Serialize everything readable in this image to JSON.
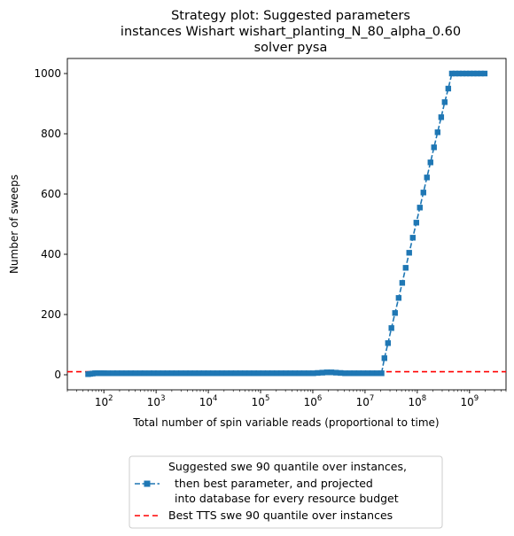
{
  "chart_data": {
    "type": "line",
    "title_lines": [
      "Strategy plot: Suggested parameters",
      "instances Wishart wishart_planting_N_80_alpha_0.60",
      "solver pysa"
    ],
    "xlabel": "Total number of spin variable reads (proportional to time)",
    "ylabel": "Number of sweeps",
    "xscale": "log",
    "xlim": [
      20,
      5000000000
    ],
    "ylim": [
      -50,
      1050
    ],
    "yticks": [
      0,
      200,
      400,
      600,
      800,
      1000
    ],
    "xtick_exponents": [
      "2",
      "3",
      "4",
      "5",
      "6",
      "7",
      "8",
      "9"
    ],
    "xtick_base": "10",
    "grid": false,
    "legend_position": "below",
    "series": [
      {
        "name_lines": [
          "Suggested swe 90 quantile over instances,",
          "then best parameter, and projected",
          "into database for every resource budget"
        ],
        "color": "#1f77b4",
        "marker": "square",
        "points": [
          [
            50,
            2
          ],
          [
            55,
            3
          ],
          [
            61,
            4
          ],
          [
            68,
            5
          ],
          [
            75,
            5
          ],
          [
            83,
            5
          ],
          [
            92,
            5
          ],
          [
            100,
            5
          ],
          [
            120,
            5
          ],
          [
            150,
            5
          ],
          [
            180,
            5
          ],
          [
            220,
            5
          ],
          [
            270,
            5
          ],
          [
            330,
            5
          ],
          [
            400,
            5
          ],
          [
            500,
            5
          ],
          [
            600,
            5
          ],
          [
            750,
            5
          ],
          [
            900,
            5
          ],
          [
            1100,
            5
          ],
          [
            1350,
            5
          ],
          [
            1650,
            5
          ],
          [
            2000,
            5
          ],
          [
            2450,
            5
          ],
          [
            3000,
            5
          ],
          [
            3700,
            5
          ],
          [
            4500,
            5
          ],
          [
            5500,
            5
          ],
          [
            6700,
            5
          ],
          [
            8200,
            5
          ],
          [
            10000,
            5
          ],
          [
            12200,
            5
          ],
          [
            15000,
            5
          ],
          [
            18300,
            5
          ],
          [
            22400,
            5
          ],
          [
            27400,
            5
          ],
          [
            33500,
            5
          ],
          [
            41000,
            5
          ],
          [
            50000,
            5
          ],
          [
            61000,
            5
          ],
          [
            75000,
            5
          ],
          [
            91500,
            5
          ],
          [
            112000,
            5
          ],
          [
            137000,
            5
          ],
          [
            167000,
            5
          ],
          [
            204000,
            5
          ],
          [
            250000,
            5
          ],
          [
            305000,
            5
          ],
          [
            373000,
            5
          ],
          [
            456000,
            5
          ],
          [
            557000,
            5
          ],
          [
            681000,
            5
          ],
          [
            832000,
            5
          ],
          [
            1020000,
            5
          ],
          [
            1240000,
            6
          ],
          [
            1520000,
            7
          ],
          [
            1860000,
            8
          ],
          [
            2270000,
            8
          ],
          [
            2780000,
            7
          ],
          [
            3400000,
            6
          ],
          [
            4150000,
            5
          ],
          [
            5080000,
            5
          ],
          [
            6200000,
            5
          ],
          [
            7580000,
            5
          ],
          [
            9270000,
            5
          ],
          [
            11300000,
            5
          ],
          [
            13800000,
            5
          ],
          [
            16900000,
            5
          ],
          [
            20700000,
            5
          ],
          [
            23500000,
            55
          ],
          [
            27500000,
            105
          ],
          [
            32000000,
            155
          ],
          [
            37500000,
            205
          ],
          [
            44000000,
            255
          ],
          [
            51500000,
            305
          ],
          [
            60000000,
            355
          ],
          [
            70000000,
            405
          ],
          [
            82000000,
            455
          ],
          [
            96000000,
            505
          ],
          [
            112000000,
            555
          ],
          [
            131000000,
            605
          ],
          [
            153000000,
            655
          ],
          [
            179000000,
            705
          ],
          [
            209000000,
            755
          ],
          [
            245000000,
            805
          ],
          [
            287000000,
            855
          ],
          [
            335000000,
            905
          ],
          [
            392000000,
            950
          ],
          [
            460000000,
            1000
          ],
          [
            540000000,
            1000
          ],
          [
            630000000,
            1000
          ],
          [
            740000000,
            1000
          ],
          [
            870000000,
            1000
          ],
          [
            1020000000,
            1000
          ],
          [
            1200000000,
            1000
          ],
          [
            1400000000,
            1000
          ],
          [
            1650000000,
            1000
          ],
          [
            1950000000,
            1000
          ]
        ]
      }
    ],
    "reference_line": {
      "name": "Best TTS swe 90 quantile over instances",
      "y": 10,
      "color": "#ff0000",
      "style": "dashed"
    }
  }
}
